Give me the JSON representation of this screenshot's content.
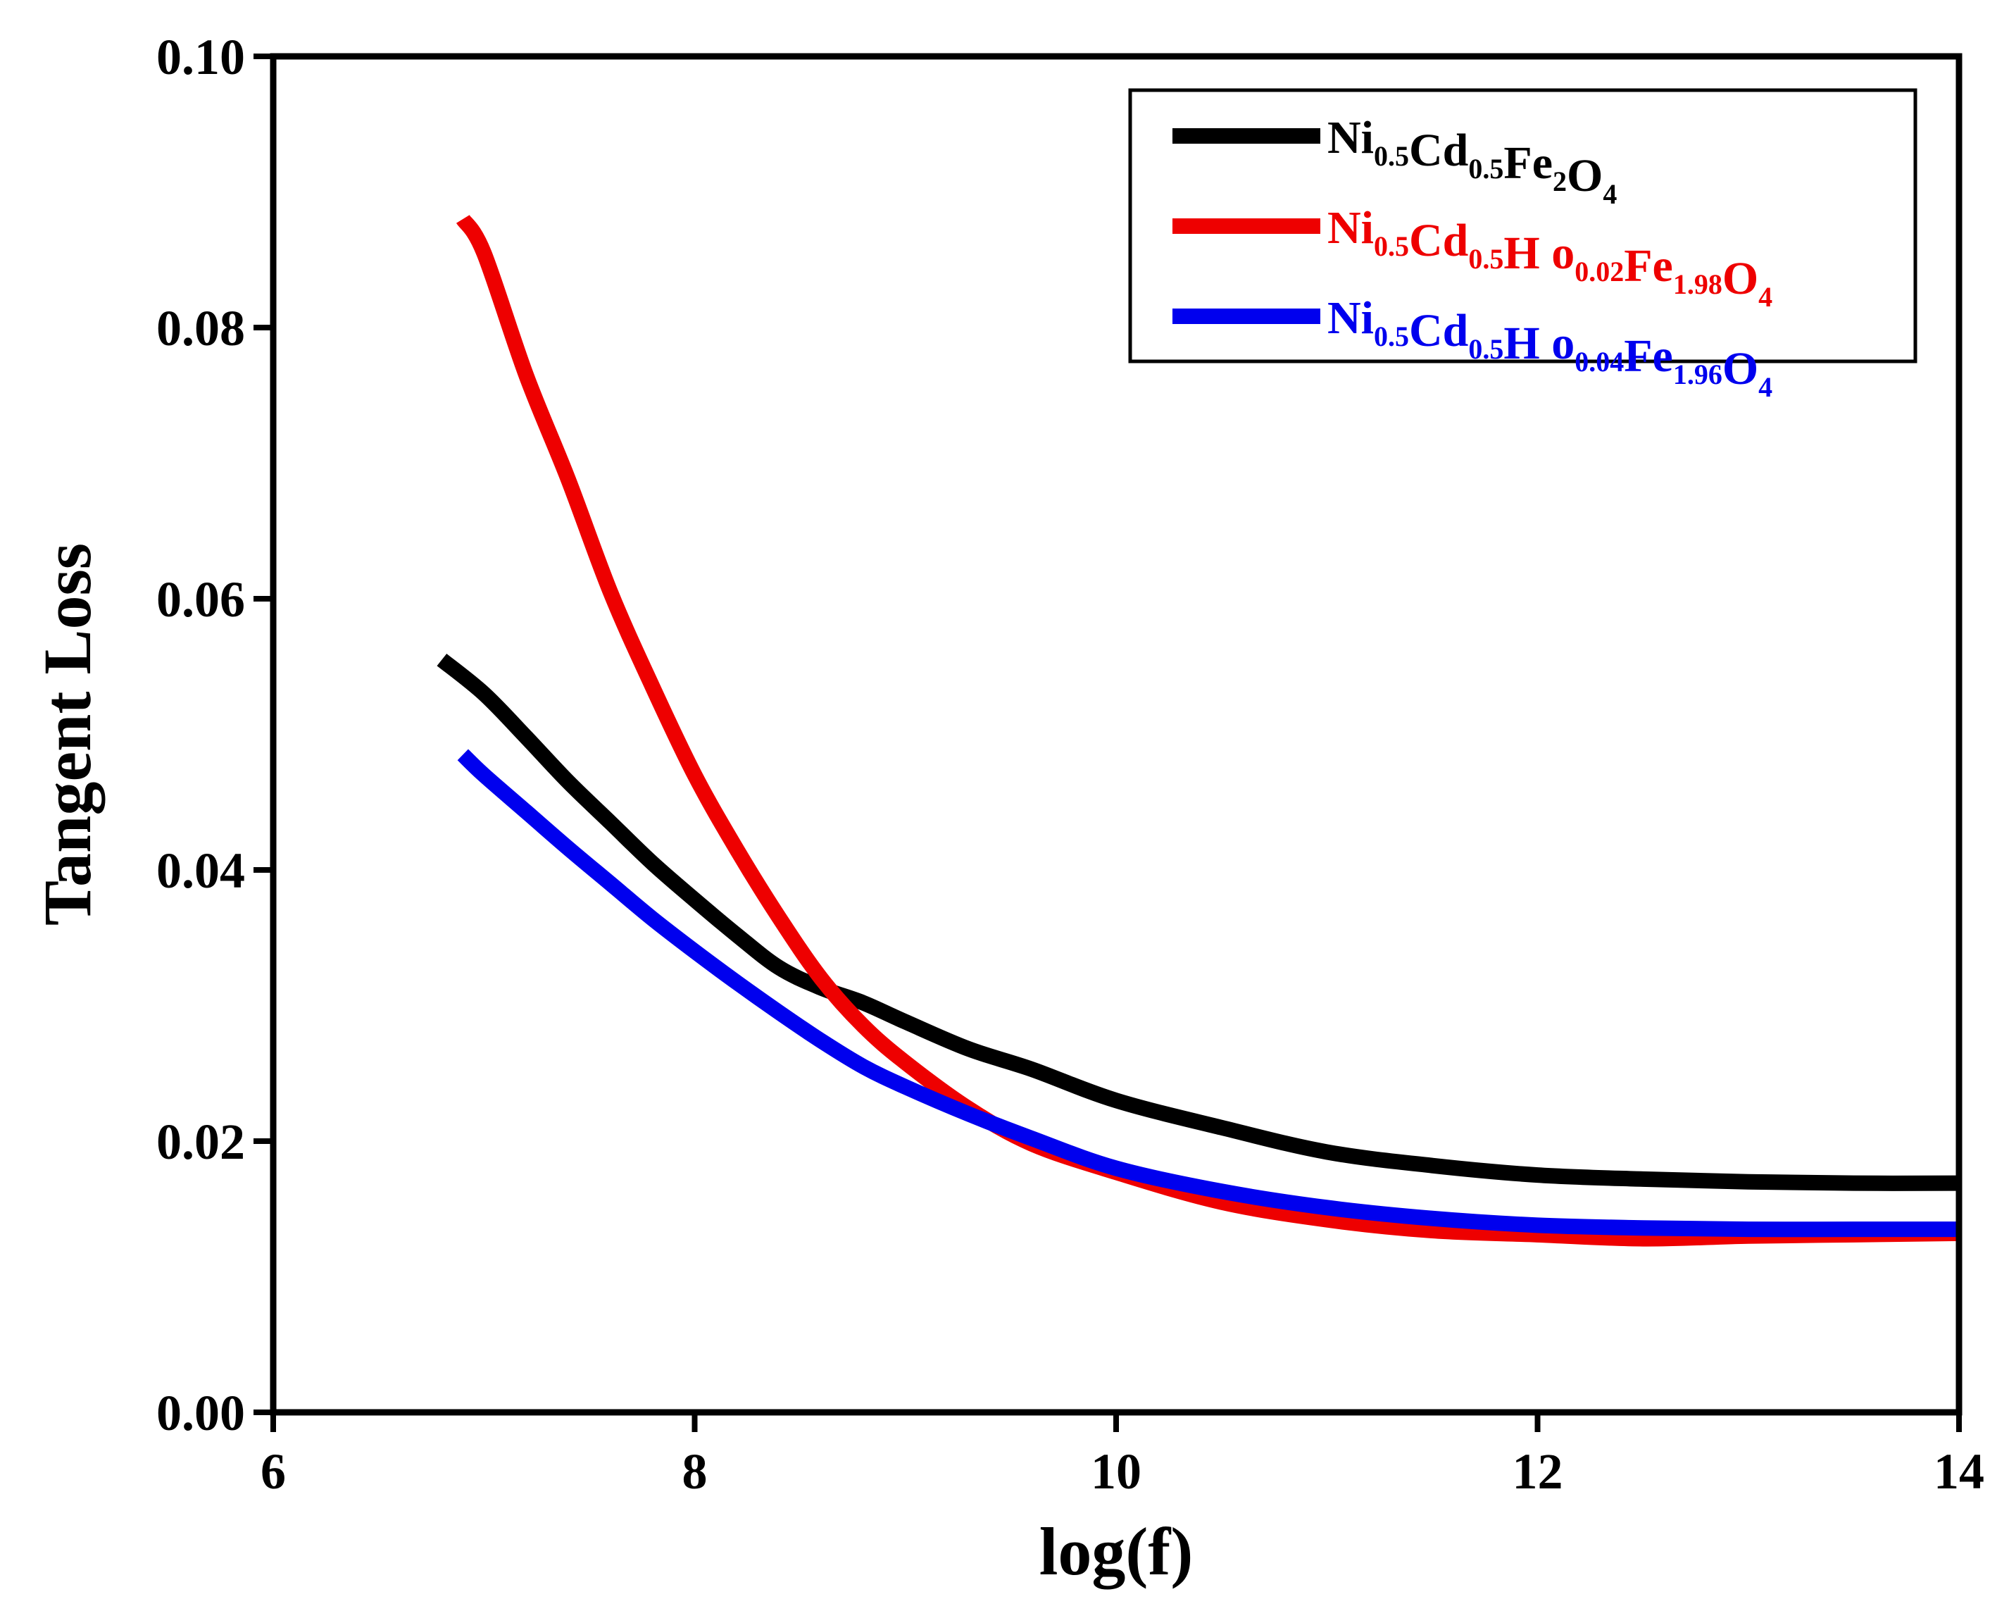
{
  "chart_data": {
    "type": "line",
    "title": "",
    "xlabel": "log(f)",
    "ylabel": "Tangent Loss",
    "xlim": [
      6,
      14
    ],
    "ylim": [
      0.0,
      0.1
    ],
    "xticks": [
      "6",
      "8",
      "10",
      "12",
      "14"
    ],
    "xtick_values": [
      6,
      8,
      10,
      12,
      14
    ],
    "yticks": [
      "0.00",
      "0.02",
      "0.04",
      "0.06",
      "0.08",
      "0.10"
    ],
    "ytick_values": [
      0.0,
      0.02,
      0.04,
      0.06,
      0.08,
      0.1
    ],
    "grid": false,
    "legend_position": "top-right",
    "series": [
      {
        "name": "Ni0.5Cd0.5Fe2O4",
        "legend_parts": [
          [
            "Ni",
            "0.5"
          ],
          [
            "Cd",
            "0.5"
          ],
          [
            "Fe",
            "2"
          ],
          [
            "O",
            "4"
          ]
        ],
        "color": "#000000",
        "x": [
          6.8,
          7.0,
          7.2,
          7.4,
          7.6,
          7.8,
          8.0,
          8.2,
          8.4,
          8.6,
          8.8,
          9.0,
          9.3,
          9.6,
          10.0,
          10.5,
          11.0,
          11.5,
          12.0,
          12.5,
          13.0,
          13.5,
          14.0
        ],
        "y": [
          0.0555,
          0.053,
          0.0498,
          0.0465,
          0.0435,
          0.0405,
          0.0378,
          0.0352,
          0.0328,
          0.0313,
          0.0302,
          0.0288,
          0.0268,
          0.0253,
          0.023,
          0.021,
          0.0192,
          0.0182,
          0.0175,
          0.0172,
          0.017,
          0.0169,
          0.0169
        ]
      },
      {
        "name": "Ni0.5Cd0.5Ho0.02Fe1.98O4",
        "legend_parts": [
          [
            "Ni",
            "0.5"
          ],
          [
            "Cd",
            "0.5"
          ],
          [
            "H o",
            "0.02"
          ],
          [
            "Fe",
            "1.98"
          ],
          [
            "O",
            "4"
          ]
        ],
        "color": "#ee0000",
        "x": [
          6.9,
          7.0,
          7.2,
          7.4,
          7.6,
          7.8,
          8.0,
          8.2,
          8.4,
          8.6,
          8.8,
          9.0,
          9.3,
          9.6,
          10.0,
          10.5,
          11.0,
          11.5,
          12.0,
          12.5,
          13.0,
          13.5,
          14.0
        ],
        "y": [
          0.088,
          0.0855,
          0.0765,
          0.0688,
          0.0605,
          0.0535,
          0.047,
          0.0415,
          0.0365,
          0.032,
          0.0285,
          0.0258,
          0.0224,
          0.0198,
          0.0177,
          0.0155,
          0.0142,
          0.0134,
          0.0131,
          0.0128,
          0.013,
          0.0131,
          0.0132
        ]
      },
      {
        "name": "Ni0.5Cd0.5Ho0.04Fe1.96O4",
        "legend_parts": [
          [
            "Ni",
            "0.5"
          ],
          [
            "Cd",
            "0.5"
          ],
          [
            "H o",
            "0.04"
          ],
          [
            "Fe",
            "1.96"
          ],
          [
            "O",
            "4"
          ]
        ],
        "color": "#0000ee",
        "x": [
          6.9,
          7.0,
          7.2,
          7.4,
          7.6,
          7.8,
          8.0,
          8.2,
          8.4,
          8.6,
          8.8,
          9.0,
          9.3,
          9.6,
          10.0,
          10.5,
          11.0,
          11.5,
          12.0,
          12.5,
          13.0,
          13.5,
          14.0
        ],
        "y": [
          0.0485,
          0.047,
          0.0443,
          0.0416,
          0.039,
          0.0364,
          0.034,
          0.0317,
          0.0295,
          0.0274,
          0.0255,
          0.024,
          0.022,
          0.0202,
          0.018,
          0.0163,
          0.0151,
          0.0143,
          0.0138,
          0.0136,
          0.0135,
          0.0135,
          0.0135
        ]
      }
    ]
  }
}
